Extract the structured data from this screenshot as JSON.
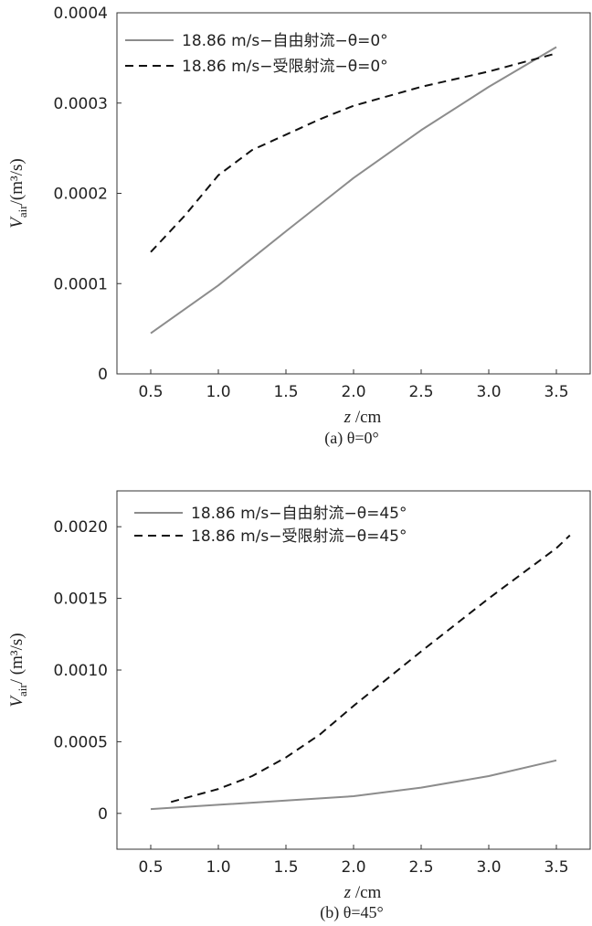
{
  "chart_data": [
    {
      "type": "line",
      "caption": "(a) θ=0°",
      "xlabel": {
        "var": "z",
        "unit": " /cm"
      },
      "ylabel": {
        "var": "V",
        "sub": "air",
        "unit": "/(m³/s)"
      },
      "xlim": [
        0.25,
        3.75
      ],
      "ylim": [
        0,
        0.0004
      ],
      "xticks": [
        "0.5",
        "1.0",
        "1.5",
        "2.0",
        "2.5",
        "3.0",
        "3.5"
      ],
      "yticks": [
        "0",
        "0.0001",
        "0.0002",
        "0.0003",
        "0.0004"
      ],
      "grid": false,
      "legend_position": "top-left",
      "series": [
        {
          "name": "18.86 m/s−自由射流−θ=0°",
          "style": "solid",
          "color": "#8c8c8c",
          "x": [
            0.5,
            1.0,
            1.5,
            2.0,
            2.5,
            3.0,
            3.5
          ],
          "y": [
            4.5e-05,
            9.8e-05,
            0.000158,
            0.000217,
            0.00027,
            0.000318,
            0.000362
          ]
        },
        {
          "name": "18.86 m/s−受限射流−θ=0°",
          "style": "dashed",
          "color": "#111111",
          "x": [
            0.5,
            0.75,
            1.0,
            1.25,
            1.5,
            1.75,
            2.0,
            2.5,
            3.0,
            3.5
          ],
          "y": [
            0.000135,
            0.000175,
            0.00022,
            0.000248,
            0.000265,
            0.000282,
            0.000297,
            0.000318,
            0.000335,
            0.000355
          ]
        }
      ]
    },
    {
      "type": "line",
      "caption": "(b) θ=45°",
      "xlabel": {
        "var": "z",
        "unit": " /cm"
      },
      "ylabel": {
        "var": "V",
        "sub": "air",
        "unit": "/ (m³/s)"
      },
      "xlim": [
        0.25,
        3.75
      ],
      "ylim": [
        -0.00025,
        0.00225
      ],
      "xticks": [
        "0.5",
        "1.0",
        "1.5",
        "2.0",
        "2.5",
        "3.0",
        "3.5"
      ],
      "yticks": [
        "0",
        "0.0005",
        "0.0010",
        "0.0015",
        "0.0020"
      ],
      "grid": false,
      "legend_position": "top-left",
      "series": [
        {
          "name": "18.86 m/s−自由射流−θ=45°",
          "style": "solid",
          "color": "#8c8c8c",
          "x": [
            0.5,
            1.0,
            1.5,
            2.0,
            2.5,
            3.0,
            3.5
          ],
          "y": [
            3e-05,
            6e-05,
            9e-05,
            0.00012,
            0.00018,
            0.00026,
            0.00037
          ]
        },
        {
          "name": "18.86 m/s−受限射流−θ=45°",
          "style": "dashed",
          "color": "#111111",
          "x": [
            0.65,
            1.0,
            1.25,
            1.5,
            1.75,
            2.0,
            2.5,
            3.0,
            3.5,
            3.6
          ],
          "y": [
            8e-05,
            0.00017,
            0.00026,
            0.00039,
            0.00055,
            0.00075,
            0.00113,
            0.0015,
            0.00185,
            0.00194
          ]
        }
      ]
    }
  ]
}
